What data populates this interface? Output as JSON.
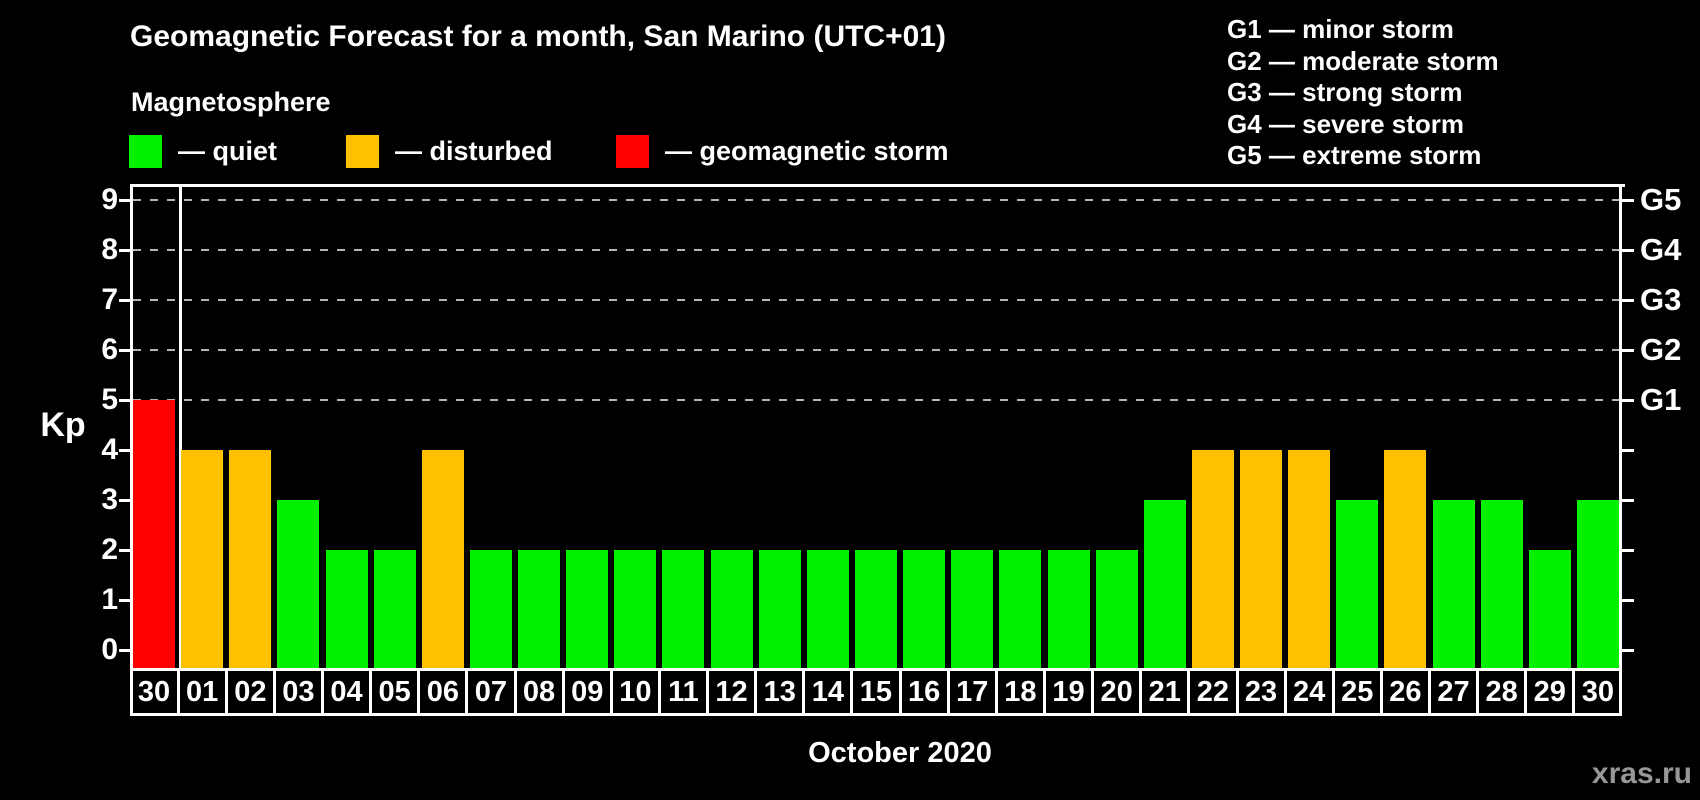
{
  "header": {
    "title": "Geomagnetic Forecast for a month, San Marino (UTC+01)",
    "subtitle": "Magnetosphere"
  },
  "legend": [
    {
      "status": "quiet",
      "label": "— quiet",
      "color": "#00f000"
    },
    {
      "status": "disturbed",
      "label": "— disturbed",
      "color": "#ffc000"
    },
    {
      "status": "storm",
      "label": "— geomagnetic storm",
      "color": "#ff0000"
    }
  ],
  "g_legend": [
    "G1 — minor storm",
    "G2 — moderate storm",
    "G3 — strong storm",
    "G4 — severe storm",
    "G5 — extreme storm"
  ],
  "watermark": "xras.ru",
  "chart_data": {
    "type": "bar",
    "title": "Geomagnetic Forecast for a month, San Marino (UTC+01)",
    "ylabel": "Kp",
    "xlabel": "October 2020",
    "ylim": [
      0,
      9
    ],
    "y_ticks": [
      0,
      1,
      2,
      3,
      4,
      5,
      6,
      7,
      8,
      9
    ],
    "gridlines_at": [
      5,
      6,
      7,
      8,
      9
    ],
    "grid_style": "dashed",
    "legend_position": "top",
    "right_axis_labels": [
      {
        "value": 5,
        "label": "G1"
      },
      {
        "value": 6,
        "label": "G2"
      },
      {
        "value": 7,
        "label": "G3"
      },
      {
        "value": 8,
        "label": "G4"
      },
      {
        "value": 9,
        "label": "G5"
      }
    ],
    "x_categories": [
      "30",
      "01",
      "02",
      "03",
      "04",
      "05",
      "06",
      "07",
      "08",
      "09",
      "10",
      "11",
      "12",
      "13",
      "14",
      "15",
      "16",
      "17",
      "18",
      "19",
      "20",
      "21",
      "22",
      "23",
      "24",
      "25",
      "26",
      "27",
      "28",
      "29",
      "30"
    ],
    "series": [
      {
        "name": "Kp forecast",
        "values": [
          5,
          4,
          4,
          3,
          2,
          2,
          4,
          2,
          2,
          2,
          2,
          2,
          2,
          2,
          2,
          2,
          2,
          2,
          2,
          2,
          2,
          3,
          4,
          4,
          4,
          3,
          4,
          3,
          3,
          2,
          3
        ],
        "statuses": [
          "storm",
          "disturbed",
          "disturbed",
          "quiet",
          "quiet",
          "quiet",
          "disturbed",
          "quiet",
          "quiet",
          "quiet",
          "quiet",
          "quiet",
          "quiet",
          "quiet",
          "quiet",
          "quiet",
          "quiet",
          "quiet",
          "quiet",
          "quiet",
          "quiet",
          "quiet",
          "disturbed",
          "disturbed",
          "disturbed",
          "quiet",
          "disturbed",
          "quiet",
          "quiet",
          "quiet",
          "quiet"
        ]
      }
    ],
    "status_colors": {
      "quiet": "#00f000",
      "disturbed": "#ffc000",
      "storm": "#ff0000"
    },
    "prev_month_separator_after_index": 0
  }
}
